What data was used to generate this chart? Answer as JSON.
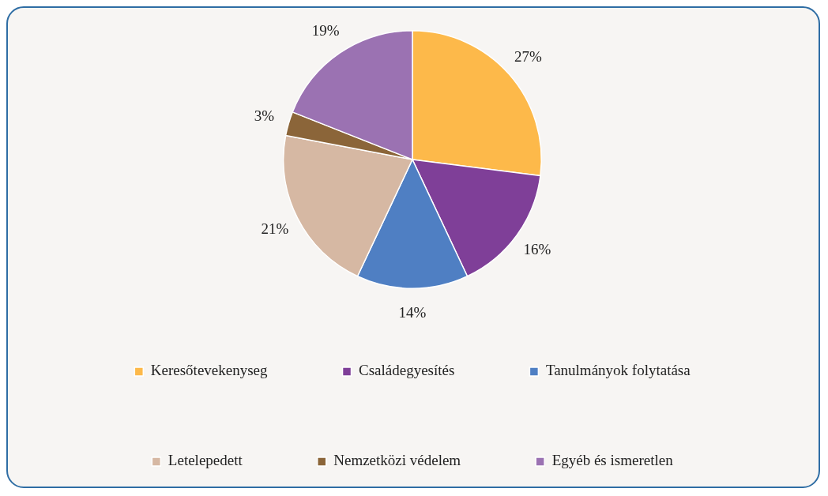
{
  "chart_data": {
    "type": "pie",
    "categories": [
      "Keresőtevekenyseg",
      "Családegyesítés",
      "Tanulmányok folytatása",
      "Letelepedett",
      "Nemzetközi védelem",
      "Egyéb és ismeretlen"
    ],
    "values": [
      27,
      16,
      14,
      21,
      3,
      19
    ],
    "colors": [
      "#fdb94a",
      "#7f3f98",
      "#4f7fc3",
      "#d6b8a3",
      "#8b6539",
      "#9b72b2"
    ],
    "value_labels": [
      "27%",
      "16%",
      "14%",
      "21%",
      "3%",
      "19%"
    ],
    "legend": "bottom"
  }
}
